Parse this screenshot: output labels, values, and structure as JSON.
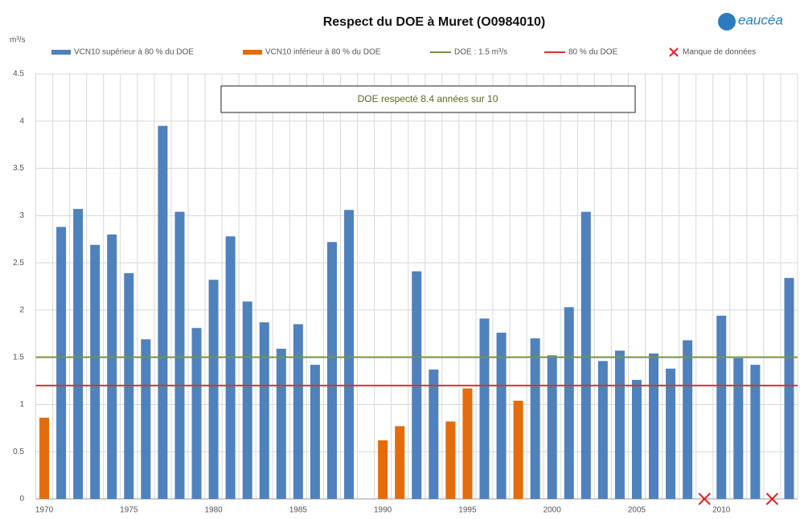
{
  "logo": "eaucéa",
  "chart_data": {
    "type": "bar",
    "title": "Respect du DOE  à Muret (O0984010)",
    "y_label": "m³/s",
    "annotation": "DOE respecté 8.4 années sur 10",
    "categories": [
      "1970",
      null,
      null,
      null,
      null,
      "1975",
      null,
      null,
      null,
      null,
      "1980",
      null,
      null,
      null,
      null,
      "1985",
      null,
      null,
      null,
      null,
      "1990",
      null,
      null,
      null,
      null,
      "1995",
      null,
      null,
      null,
      null,
      "2000",
      null,
      null,
      null,
      null,
      "2005",
      null,
      null,
      null,
      null,
      "2010",
      null,
      null,
      null,
      null
    ],
    "series": [
      {
        "name": "VCN10 supérieur à 80 % du DOE",
        "color": "#4f81bd",
        "values": [
          null,
          2.88,
          3.07,
          2.69,
          2.8,
          2.39,
          1.69,
          3.95,
          3.04,
          1.81,
          2.32,
          2.78,
          2.09,
          1.87,
          1.59,
          1.85,
          1.42,
          2.72,
          3.06,
          null,
          null,
          null,
          2.41,
          1.37,
          null,
          null,
          1.91,
          1.76,
          null,
          1.7,
          1.52,
          2.03,
          3.04,
          1.46,
          1.57,
          1.26,
          1.54,
          1.38,
          1.68,
          null,
          1.94,
          1.49,
          1.42,
          null,
          2.34
        ]
      },
      {
        "name": "VCN10 inférieur à 80 % du DOE",
        "color": "#e46c0a",
        "values": [
          0.86,
          null,
          null,
          null,
          null,
          null,
          null,
          null,
          null,
          null,
          null,
          null,
          null,
          null,
          null,
          null,
          null,
          null,
          null,
          null,
          0.62,
          0.77,
          null,
          null,
          0.82,
          1.17,
          null,
          null,
          1.04,
          null,
          null,
          null,
          null,
          null,
          null,
          null,
          null,
          null,
          null,
          null,
          null,
          null,
          null,
          null,
          null
        ]
      },
      {
        "name": "Manque de données",
        "color": "#e8202a",
        "type": "marker",
        "values": [
          null,
          null,
          null,
          null,
          null,
          null,
          null,
          null,
          null,
          null,
          null,
          null,
          null,
          null,
          null,
          null,
          null,
          null,
          null,
          null,
          null,
          null,
          null,
          null,
          null,
          null,
          null,
          null,
          null,
          null,
          null,
          null,
          null,
          null,
          null,
          null,
          null,
          null,
          null,
          0,
          null,
          null,
          null,
          0,
          null
        ]
      }
    ],
    "hlines": [
      {
        "name": "DOE : 1.5 m³/s",
        "value": 1.5,
        "color": "#77933c"
      },
      {
        "name": "80 % du DOE",
        "value": 1.2,
        "color": "#e03030"
      }
    ],
    "ylim": [
      0,
      4.5
    ],
    "yticks": [
      0,
      0.5,
      1,
      1.5,
      2,
      2.5,
      3,
      3.5,
      4,
      4.5
    ],
    "grid": true
  }
}
